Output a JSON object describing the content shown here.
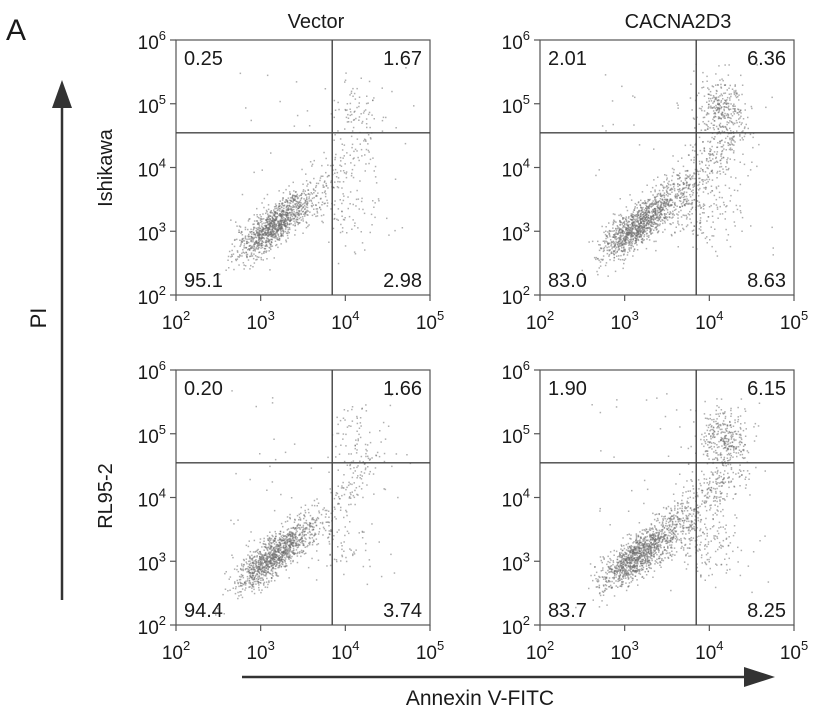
{
  "panel_label": "A",
  "col_labels": [
    "Vector",
    "CACNA2D3"
  ],
  "row_labels": [
    "Ishikawa",
    "RL95-2"
  ],
  "y_axis_title": "PI",
  "x_axis_title": "Annexin V-FITC",
  "chart_data": {
    "type": "scatter",
    "x_scale": "log",
    "y_scale": "log",
    "xlim": [
      100,
      100000
    ],
    "ylim": [
      100,
      1000000
    ],
    "x_ticks": [
      {
        "base": "10",
        "exp": "2"
      },
      {
        "base": "10",
        "exp": "3"
      },
      {
        "base": "10",
        "exp": "4"
      },
      {
        "base": "10",
        "exp": "5"
      }
    ],
    "y_ticks": [
      {
        "base": "10",
        "exp": "2"
      },
      {
        "base": "10",
        "exp": "3"
      },
      {
        "base": "10",
        "exp": "4"
      },
      {
        "base": "10",
        "exp": "5"
      },
      {
        "base": "10",
        "exp": "6"
      }
    ],
    "gate": {
      "x": 7000,
      "y": 35000
    },
    "panels": [
      {
        "row": "Ishikawa",
        "condition": "Vector",
        "quadrants": {
          "upper_left": "0.25",
          "upper_right": "1.67",
          "lower_left": "95.1",
          "lower_right": "2.98"
        }
      },
      {
        "row": "Ishikawa",
        "condition": "CACNA2D3",
        "quadrants": {
          "upper_left": "2.01",
          "upper_right": "6.36",
          "lower_left": "83.0",
          "lower_right": "8.63"
        }
      },
      {
        "row": "RL95-2",
        "condition": "Vector",
        "quadrants": {
          "upper_left": "0.20",
          "upper_right": "1.66",
          "lower_left": "94.4",
          "lower_right": "3.74"
        }
      },
      {
        "row": "RL95-2",
        "condition": "CACNA2D3",
        "quadrants": {
          "upper_left": "1.90",
          "upper_right": "6.15",
          "lower_left": "83.7",
          "lower_right": "8.25"
        }
      }
    ]
  }
}
